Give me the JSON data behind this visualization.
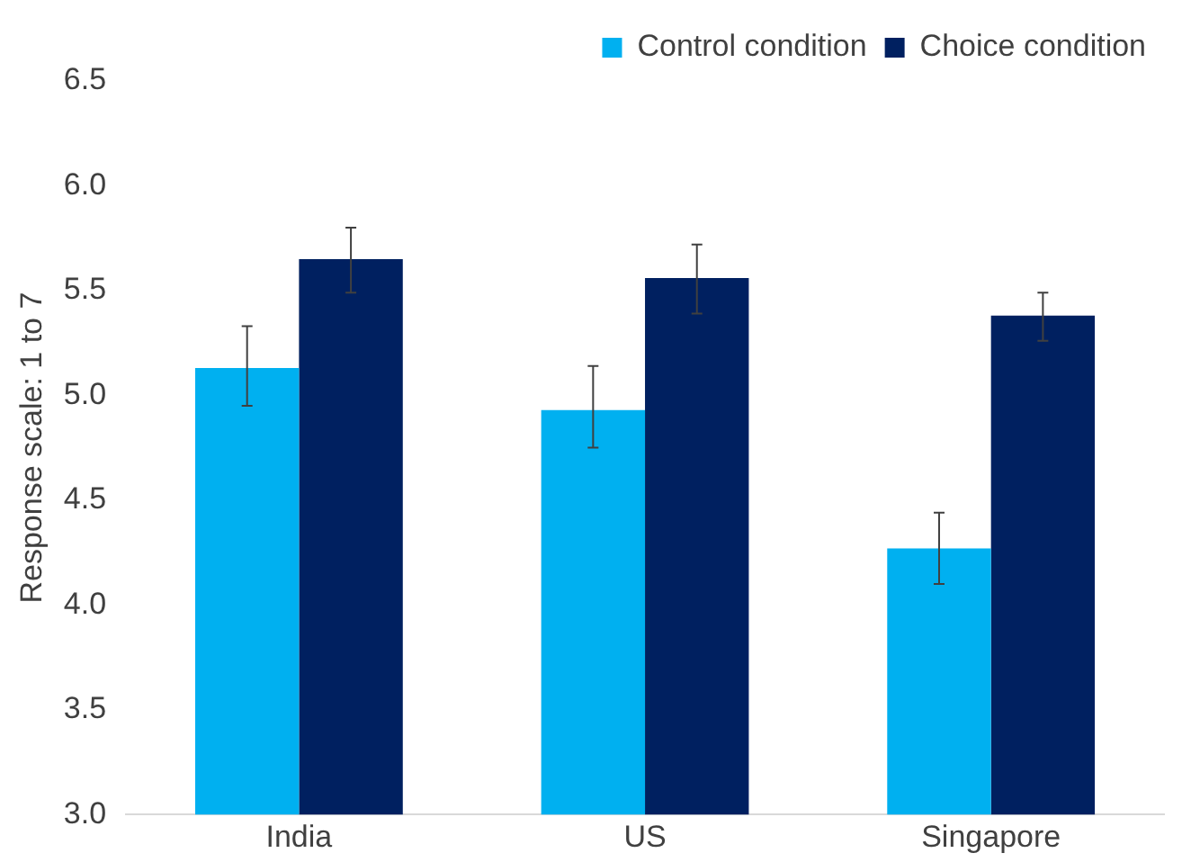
{
  "chart_data": {
    "type": "bar",
    "ylabel": "Response scale: 1 to 7",
    "categories": [
      "India",
      "US",
      "Singapore"
    ],
    "series": [
      {
        "name": "Control condition",
        "color": "#00b0f0",
        "values": [
          5.13,
          4.93,
          4.27
        ],
        "errors": [
          [
            4.95,
            5.33
          ],
          [
            4.75,
            5.14
          ],
          [
            4.1,
            4.44
          ]
        ]
      },
      {
        "name": "Choice condition",
        "color": "#002060",
        "values": [
          5.65,
          5.56,
          5.38
        ],
        "errors": [
          [
            5.49,
            5.8
          ],
          [
            5.39,
            5.72
          ],
          [
            5.26,
            5.49
          ]
        ]
      }
    ],
    "ylim": [
      3,
      6.5
    ],
    "yticks": [
      {
        "value": 3,
        "label": "3.0"
      },
      {
        "value": 3.5,
        "label": "3.5"
      },
      {
        "value": 4,
        "label": "4.0"
      },
      {
        "value": 4.5,
        "label": "4.5"
      },
      {
        "value": 5,
        "label": "5.0"
      },
      {
        "value": 5.5,
        "label": "5.5"
      },
      {
        "value": 6,
        "label": "6.0"
      },
      {
        "value": 6.5,
        "label": "6.5"
      }
    ],
    "grid": false,
    "legend": "top right"
  }
}
